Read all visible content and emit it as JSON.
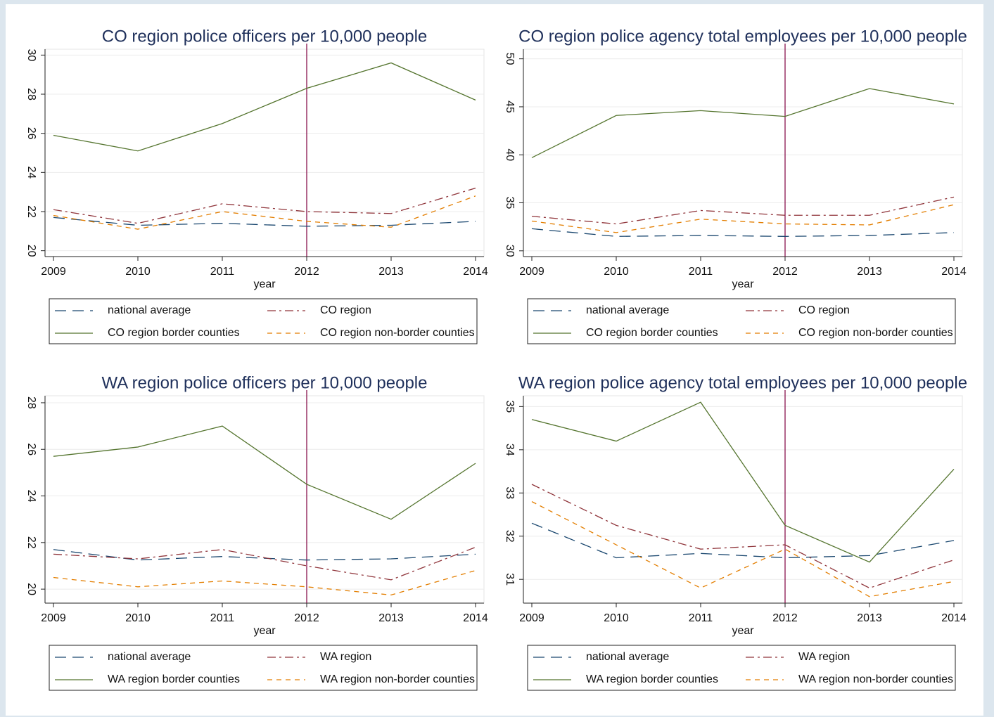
{
  "chart_data": [
    {
      "type": "line",
      "title": "CO region police officers per 10,000 people",
      "xlabel": "year",
      "x": [
        2009,
        2010,
        2011,
        2012,
        2013,
        2014
      ],
      "xlim": [
        2008.9,
        2014.1
      ],
      "xticks": [
        2009,
        2010,
        2011,
        2012,
        2013,
        2014
      ],
      "ylim": [
        19.7,
        30.3
      ],
      "yticks": [
        20,
        22,
        24,
        26,
        28,
        30
      ],
      "grid": true,
      "vline": 2012,
      "vline_color": "#800040",
      "series": [
        {
          "name": "national average",
          "color": "#1a476f",
          "dash": "longdash",
          "values": [
            21.7,
            21.3,
            21.4,
            21.25,
            21.3,
            21.5
          ]
        },
        {
          "name": "CO region",
          "color": "#90353b",
          "dash": "dashdot",
          "values": [
            22.1,
            21.4,
            22.4,
            22.0,
            21.9,
            23.2
          ]
        },
        {
          "name": "CO region border counties",
          "color": "#55752f",
          "dash": "solid",
          "values": [
            25.9,
            25.1,
            26.5,
            28.3,
            29.6,
            27.7
          ]
        },
        {
          "name": "CO region non-border counties",
          "color": "#e37e00",
          "dash": "dash",
          "values": [
            21.8,
            21.1,
            22.0,
            21.5,
            21.2,
            22.8
          ]
        }
      ]
    },
    {
      "type": "line",
      "title": "CO region police agency total employees per 10,000 people",
      "xlabel": "year",
      "x": [
        2009,
        2010,
        2011,
        2012,
        2013,
        2014
      ],
      "xlim": [
        2008.9,
        2014.1
      ],
      "xticks": [
        2009,
        2010,
        2011,
        2012,
        2013,
        2014
      ],
      "ylim": [
        29.4,
        51
      ],
      "yticks": [
        30,
        35,
        40,
        45,
        50
      ],
      "grid": true,
      "vline": 2012,
      "vline_color": "#800040",
      "series": [
        {
          "name": "national average",
          "color": "#1a476f",
          "dash": "longdash",
          "values": [
            32.3,
            31.5,
            31.6,
            31.5,
            31.6,
            31.9
          ]
        },
        {
          "name": "CO region",
          "color": "#90353b",
          "dash": "dashdot",
          "values": [
            33.6,
            32.8,
            34.2,
            33.7,
            33.7,
            35.6
          ]
        },
        {
          "name": "CO region border counties",
          "color": "#55752f",
          "dash": "solid",
          "values": [
            39.7,
            44.1,
            44.6,
            44.0,
            46.9,
            45.3
          ]
        },
        {
          "name": "CO region non-border counties",
          "color": "#e37e00",
          "dash": "dash",
          "values": [
            33.1,
            31.9,
            33.3,
            32.8,
            32.7,
            34.8
          ]
        }
      ]
    },
    {
      "type": "line",
      "title": "WA region police officers per 10,000 people",
      "xlabel": "year",
      "x": [
        2009,
        2010,
        2011,
        2012,
        2013,
        2014
      ],
      "xlim": [
        2008.9,
        2014.1
      ],
      "xticks": [
        2009,
        2010,
        2011,
        2012,
        2013,
        2014
      ],
      "ylim": [
        19.4,
        28.3
      ],
      "yticks": [
        20,
        22,
        24,
        26,
        28
      ],
      "grid": true,
      "vline": 2012,
      "vline_color": "#800040",
      "series": [
        {
          "name": "national average",
          "color": "#1a476f",
          "dash": "longdash",
          "values": [
            21.7,
            21.25,
            21.4,
            21.25,
            21.3,
            21.5
          ]
        },
        {
          "name": "WA region",
          "color": "#90353b",
          "dash": "dashdot",
          "values": [
            21.5,
            21.3,
            21.7,
            21.0,
            20.4,
            21.8
          ]
        },
        {
          "name": "WA region border counties",
          "color": "#55752f",
          "dash": "solid",
          "values": [
            25.7,
            26.1,
            27.0,
            24.5,
            23.0,
            25.4
          ]
        },
        {
          "name": "WA region non-border counties",
          "color": "#e37e00",
          "dash": "dash",
          "values": [
            20.5,
            20.1,
            20.35,
            20.1,
            19.75,
            20.8
          ]
        }
      ]
    },
    {
      "type": "line",
      "title": "WA region police agency total employees per 10,000 people",
      "xlabel": "year",
      "x": [
        2009,
        2010,
        2011,
        2012,
        2013,
        2014
      ],
      "xlim": [
        2008.9,
        2014.1
      ],
      "xticks": [
        2009,
        2010,
        2011,
        2012,
        2013,
        2014
      ],
      "ylim": [
        30.45,
        35.25
      ],
      "yticks": [
        31,
        32,
        33,
        34,
        35
      ],
      "grid": true,
      "vline": 2012,
      "vline_color": "#800040",
      "series": [
        {
          "name": "national average",
          "color": "#1a476f",
          "dash": "longdash",
          "values": [
            32.3,
            31.5,
            31.6,
            31.5,
            31.55,
            31.9
          ]
        },
        {
          "name": "WA region",
          "color": "#90353b",
          "dash": "dashdot",
          "values": [
            33.2,
            32.25,
            31.7,
            31.8,
            30.8,
            31.45
          ]
        },
        {
          "name": "WA region border counties",
          "color": "#55752f",
          "dash": "solid",
          "values": [
            34.7,
            34.2,
            35.1,
            32.25,
            31.4,
            33.55
          ]
        },
        {
          "name": "WA region non-border counties",
          "color": "#e37e00",
          "dash": "dash",
          "values": [
            32.8,
            31.8,
            30.8,
            31.7,
            30.6,
            30.95
          ]
        }
      ]
    }
  ]
}
